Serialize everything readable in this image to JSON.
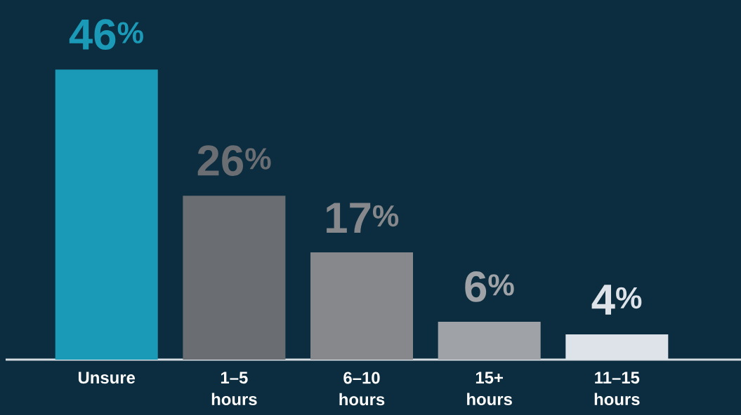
{
  "chart_data": {
    "type": "bar",
    "categories": [
      "Unsure",
      "1–5 hours",
      "6–10 hours",
      "15+ hours",
      "11–15 hours"
    ],
    "values": [
      46,
      26,
      17,
      6,
      4
    ],
    "colors": [
      "#1b9ab8",
      "#6a6d72",
      "#86888c",
      "#9fa3a7",
      "#dde3e8"
    ],
    "value_labels": [
      "46$^{%}$",
      "26$^{%}$",
      "17$^{%}$",
      "6$^{%}$",
      "4$^{%}$"
    ],
    "grid": false,
    "tick_labels": "x"
  }
}
